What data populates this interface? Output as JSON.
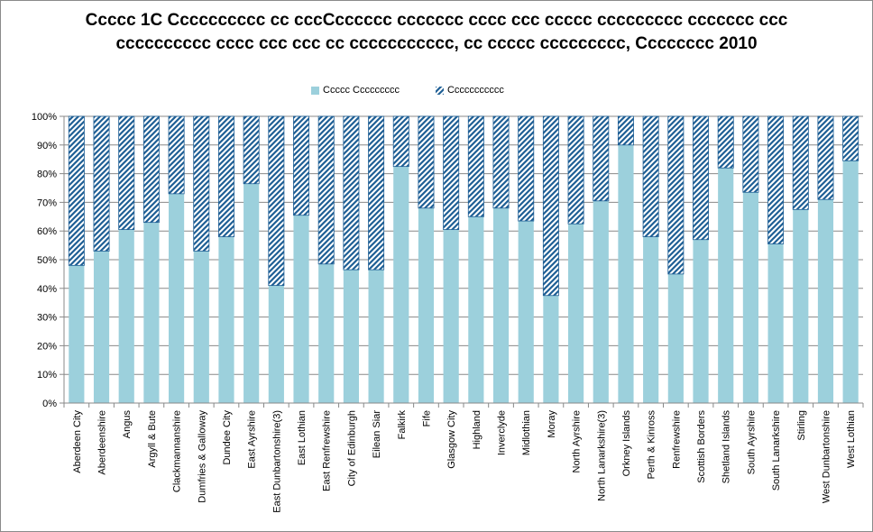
{
  "chart_data": {
    "type": "bar",
    "stacked": true,
    "title_lines": [
      "Ccccc 1C  Cccccccccc cc cccCcccccc ccccccc cccc ccc ccccc ccccccccc ccccccc ccc",
      "cccccccccc cccc ccc ccc cc ccccccccccc, cc ccccc ccccccccc, Cccccccc 2010"
    ],
    "xlabel": "",
    "ylabel": "",
    "ylim": [
      0,
      100
    ],
    "yticks": [
      "0%",
      "10%",
      "20%",
      "30%",
      "40%",
      "50%",
      "60%",
      "70%",
      "80%",
      "90%",
      "100%"
    ],
    "grid": true,
    "legend_position": "top",
    "categories": [
      "Aberdeen City",
      "Aberdeenshire",
      "Angus",
      "Argyll & Bute",
      "Clackmannanshire",
      "Dumfries & Galloway",
      "Dundee City",
      "East Ayrshire",
      "East Dunbartonshire(3)",
      "East Lothian",
      "East Renfrewshire",
      "City of Edinburgh",
      "Eilean Siar",
      "Falkirk",
      "Fife",
      "Glasgow City",
      "Highland",
      "Inverclyde",
      "Midlothian",
      "Moray",
      "North Ayrshire",
      "North Lanarkshire(3)",
      "Orkney Islands",
      "Perth & Kinross",
      "Renfrewshire",
      "Scottish Borders",
      "Shetland Islands",
      "South Ayrshire",
      "South Lanarkshire",
      "Stirling",
      "West Dunbartonshire",
      "West Lothian"
    ],
    "series": [
      {
        "name": "Ccccc Ccccccccc",
        "color": "#9cd0dc",
        "pattern": "solid",
        "values": [
          48,
          53,
          60.5,
          63,
          73,
          53,
          58,
          76.5,
          41,
          65.5,
          48.5,
          46.5,
          46.5,
          82.5,
          68,
          60.5,
          65,
          68,
          63.5,
          37.5,
          62.5,
          70.5,
          90,
          58,
          45,
          57,
          82,
          73.5,
          55.5,
          67.5,
          71,
          84.5
        ]
      },
      {
        "name": "Ccccccccccc",
        "color": "#1f5f95",
        "pattern": "hatched",
        "values": [
          52,
          47,
          39.5,
          37,
          27,
          47,
          42,
          23.5,
          59,
          34.5,
          51.5,
          53.5,
          53.5,
          17.5,
          32,
          39.5,
          35,
          32,
          36.5,
          62.5,
          37.5,
          29.5,
          10,
          42,
          55,
          43,
          18,
          26.5,
          44.5,
          32.5,
          29,
          15.5
        ]
      }
    ]
  }
}
